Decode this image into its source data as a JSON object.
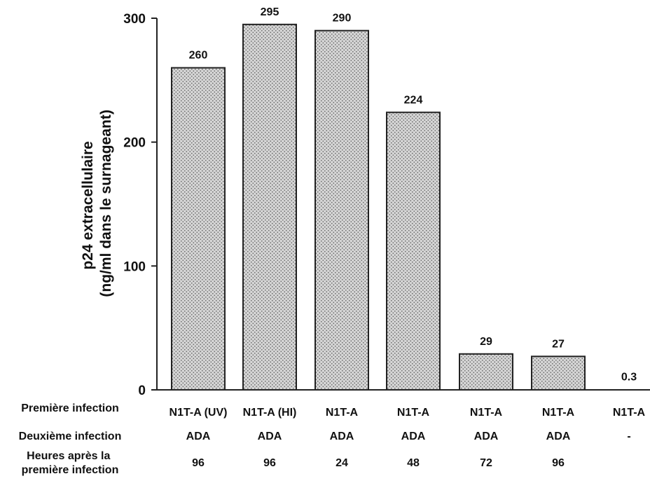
{
  "chart_data": {
    "type": "bar",
    "ylabel_line1": "p24 extracellulaire",
    "ylabel_line2": "(ng/ml dans le surnageant)",
    "ylim": [
      0,
      300
    ],
    "yticks": [
      0,
      100,
      200,
      300
    ],
    "values": [
      260,
      295,
      290,
      224,
      29,
      27,
      0.3
    ],
    "value_labels": [
      "260",
      "295",
      "290",
      "224",
      "29",
      "27",
      "0.3"
    ],
    "grid": false,
    "bar_pattern": "stippled grey",
    "table": {
      "rows": [
        {
          "label": "Première infection",
          "values": [
            "N1T-A (UV)",
            "N1T-A (HI)",
            "N1T-A",
            "N1T-A",
            "N1T-A",
            "N1T-A",
            "N1T-A"
          ]
        },
        {
          "label": "Deuxième infection",
          "values": [
            "ADA",
            "ADA",
            "ADA",
            "ADA",
            "ADA",
            "ADA",
            "-"
          ]
        },
        {
          "label_lines": [
            "Heures après la",
            "première infection"
          ],
          "values": [
            "96",
            "96",
            "24",
            "48",
            "72",
            "96",
            ""
          ]
        }
      ]
    }
  },
  "colors": {
    "bar_fill": "#d6d6d6",
    "bar_dots": "#6e6e6e",
    "outline": "#222222"
  }
}
